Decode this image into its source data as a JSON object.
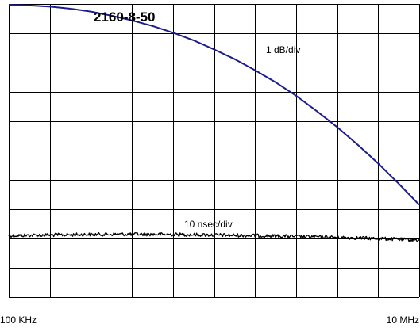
{
  "chart_data": {
    "type": "line",
    "title": "2160-8-50",
    "x_scale": "log",
    "xlim_hz": [
      100000,
      10000000
    ],
    "x_tick_labels": [
      "100 KHz",
      "10 MHz"
    ],
    "grid": true,
    "grid_divisions": {
      "x": 10,
      "y": 10
    },
    "series": [
      {
        "name": "1 dB/div",
        "color": "#1c1c8c",
        "units": "divisions from top gridline",
        "x_hz": [
          100000,
          125893,
          158489,
          199526,
          251189,
          316228,
          398107,
          501187,
          630957,
          794328,
          1000000,
          1258925,
          1584893,
          1995262,
          2511886,
          3162278,
          3981072,
          5011872,
          6309573,
          7943282,
          10000000
        ],
        "y_div": [
          0.03,
          0.05,
          0.09,
          0.16,
          0.26,
          0.4,
          0.56,
          0.75,
          0.98,
          1.24,
          1.55,
          1.88,
          2.26,
          2.67,
          3.13,
          3.65,
          4.2,
          4.8,
          5.44,
          6.13,
          6.85
        ]
      },
      {
        "name": "10 nsec/div",
        "color": "#000000",
        "units": "divisions from top gridline",
        "x_hz": [
          100000,
          158489,
          251189,
          398107,
          630957,
          1000000,
          1584893,
          2511886,
          3981072,
          6309573,
          10000000
        ],
        "y_div": [
          7.9,
          7.88,
          7.86,
          7.85,
          7.86,
          7.88,
          7.9,
          7.93,
          7.96,
          8.0,
          8.06
        ],
        "noise_div": 0.06
      }
    ]
  }
}
